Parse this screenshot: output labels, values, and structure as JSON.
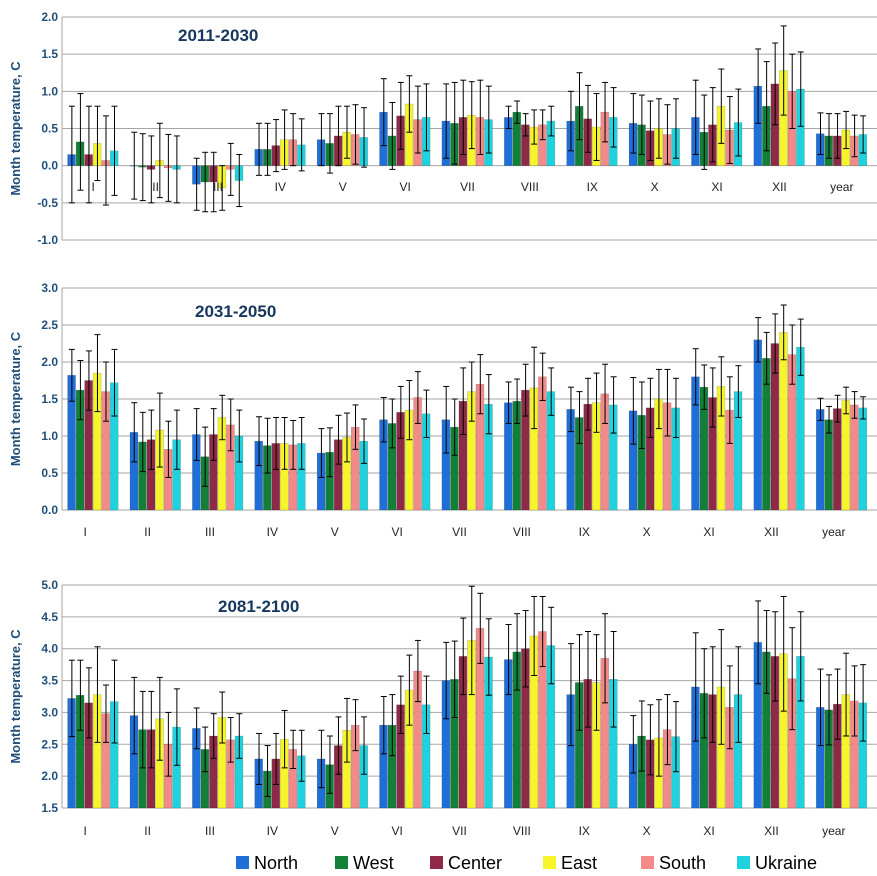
{
  "legend": [
    "North",
    "West",
    "Center",
    "East",
    "South",
    "Ukraine"
  ],
  "colors": [
    "#1f6fd8",
    "#13803a",
    "#8e2a47",
    "#f5f52a",
    "#f28a8a",
    "#1fd3de"
  ],
  "chart_data": [
    {
      "type": "bar",
      "title": "2011-2030",
      "ylabel": "Month temperature, C",
      "ylim": [
        -1.0,
        2.0
      ],
      "yticks": [
        "2.0",
        "1.5",
        "1.0",
        "0.5",
        "0.0",
        "-0.5",
        "-1.0"
      ],
      "categories": [
        "I",
        "II",
        "III",
        "IV",
        "V",
        "VI",
        "VII",
        "VIII",
        "IX",
        "X",
        "XI",
        "XII",
        "year"
      ],
      "grid": true,
      "legend_position": "bottom",
      "series": [
        {
          "name": "North",
          "values": [
            0.15,
            0.0,
            -0.25,
            0.22,
            0.35,
            0.72,
            0.6,
            0.65,
            0.6,
            0.57,
            0.65,
            1.07,
            0.43
          ],
          "err": [
            0.65,
            0.45,
            0.35,
            0.35,
            0.35,
            0.45,
            0.5,
            0.15,
            0.4,
            0.4,
            0.5,
            0.5,
            0.28
          ]
        },
        {
          "name": "West",
          "values": [
            0.32,
            -0.02,
            -0.22,
            0.22,
            0.3,
            0.4,
            0.57,
            0.72,
            0.8,
            0.55,
            0.45,
            0.8,
            0.4
          ],
          "err": [
            0.65,
            0.45,
            0.4,
            0.35,
            0.4,
            0.45,
            0.55,
            0.15,
            0.45,
            0.4,
            0.5,
            0.6,
            0.3
          ]
        },
        {
          "name": "Center",
          "values": [
            0.15,
            -0.05,
            -0.22,
            0.27,
            0.4,
            0.67,
            0.65,
            0.55,
            0.63,
            0.47,
            0.55,
            1.1,
            0.4
          ],
          "err": [
            0.65,
            0.45,
            0.4,
            0.35,
            0.4,
            0.45,
            0.5,
            0.15,
            0.45,
            0.4,
            0.5,
            0.55,
            0.3
          ]
        },
        {
          "name": "East",
          "values": [
            0.3,
            0.07,
            -0.3,
            0.35,
            0.45,
            0.83,
            0.68,
            0.52,
            0.52,
            0.5,
            0.8,
            1.28,
            0.48
          ],
          "err": [
            0.5,
            0.5,
            0.3,
            0.4,
            0.35,
            0.38,
            0.45,
            0.23,
            0.45,
            0.4,
            0.5,
            0.6,
            0.25
          ]
        },
        {
          "name": "South",
          "values": [
            0.07,
            -0.03,
            -0.05,
            0.35,
            0.42,
            0.62,
            0.65,
            0.55,
            0.72,
            0.42,
            0.48,
            1.0,
            0.4
          ],
          "err": [
            0.6,
            0.45,
            0.35,
            0.35,
            0.4,
            0.45,
            0.5,
            0.2,
            0.4,
            0.4,
            0.45,
            0.5,
            0.28
          ]
        },
        {
          "name": "Ukraine",
          "values": [
            0.2,
            -0.05,
            -0.2,
            0.28,
            0.38,
            0.65,
            0.62,
            0.6,
            0.65,
            0.5,
            0.58,
            1.03,
            0.42
          ],
          "err": [
            0.6,
            0.45,
            0.35,
            0.35,
            0.4,
            0.45,
            0.45,
            0.2,
            0.4,
            0.4,
            0.45,
            0.5,
            0.25
          ]
        }
      ]
    },
    {
      "type": "bar",
      "title": "2031-2050",
      "ylabel": "Month temperature, C",
      "ylim": [
        0.0,
        3.0
      ],
      "yticks": [
        "3.0",
        "2.5",
        "2.0",
        "1.5",
        "1.0",
        "0.5",
        "0.0"
      ],
      "categories": [
        "I",
        "II",
        "III",
        "IV",
        "V",
        "VI",
        "VII",
        "VIII",
        "IX",
        "X",
        "XI",
        "XII",
        "year"
      ],
      "grid": true,
      "legend_position": "bottom",
      "series": [
        {
          "name": "North",
          "values": [
            1.82,
            1.05,
            1.02,
            0.93,
            0.77,
            1.22,
            1.22,
            1.45,
            1.36,
            1.34,
            1.8,
            2.3,
            1.36
          ],
          "err": [
            0.35,
            0.4,
            0.35,
            0.33,
            0.33,
            0.3,
            0.45,
            0.28,
            0.3,
            0.45,
            0.38,
            0.3,
            0.15
          ]
        },
        {
          "name": "West",
          "values": [
            1.62,
            0.92,
            0.72,
            0.87,
            0.78,
            1.17,
            1.12,
            1.47,
            1.25,
            1.28,
            1.66,
            2.05,
            1.22
          ],
          "err": [
            0.4,
            0.4,
            0.4,
            0.37,
            0.33,
            0.33,
            0.38,
            0.3,
            0.35,
            0.45,
            0.3,
            0.35,
            0.18
          ]
        },
        {
          "name": "Center",
          "values": [
            1.75,
            0.95,
            1.02,
            0.9,
            0.95,
            1.32,
            1.47,
            1.62,
            1.43,
            1.38,
            1.52,
            2.25,
            1.37
          ],
          "err": [
            0.4,
            0.4,
            0.35,
            0.35,
            0.33,
            0.35,
            0.45,
            0.35,
            0.35,
            0.4,
            0.4,
            0.4,
            0.18
          ]
        },
        {
          "name": "East",
          "values": [
            1.85,
            1.08,
            1.25,
            0.9,
            0.98,
            1.35,
            1.6,
            1.65,
            1.45,
            1.5,
            1.67,
            2.4,
            1.48
          ],
          "err": [
            0.52,
            0.5,
            0.3,
            0.35,
            0.33,
            0.4,
            0.4,
            0.55,
            0.4,
            0.4,
            0.4,
            0.37,
            0.18
          ]
        },
        {
          "name": "South",
          "values": [
            1.6,
            0.82,
            1.15,
            0.88,
            1.12,
            1.52,
            1.7,
            1.8,
            1.57,
            1.45,
            1.35,
            2.1,
            1.42
          ],
          "err": [
            0.4,
            0.38,
            0.35,
            0.33,
            0.3,
            0.35,
            0.4,
            0.32,
            0.4,
            0.45,
            0.45,
            0.4,
            0.18
          ]
        },
        {
          "name": "Ukraine",
          "values": [
            1.72,
            0.95,
            1.0,
            0.9,
            0.93,
            1.3,
            1.43,
            1.6,
            1.42,
            1.38,
            1.6,
            2.2,
            1.38
          ],
          "err": [
            0.45,
            0.4,
            0.35,
            0.35,
            0.3,
            0.32,
            0.4,
            0.32,
            0.38,
            0.4,
            0.35,
            0.38,
            0.15
          ]
        }
      ]
    },
    {
      "type": "bar",
      "title": "2081-2100",
      "ylabel": "Month temperature, C",
      "ylim": [
        1.5,
        5.0
      ],
      "yticks": [
        "5.0",
        "4.5",
        "4.0",
        "3.5",
        "3.0",
        "2.5",
        "2.0",
        "1.5"
      ],
      "categories": [
        "I",
        "II",
        "III",
        "IV",
        "V",
        "VI",
        "VII",
        "VIII",
        "IX",
        "X",
        "XI",
        "XII",
        "year"
      ],
      "grid": true,
      "legend_position": "bottom",
      "series": [
        {
          "name": "North",
          "values": [
            3.22,
            2.95,
            2.75,
            2.27,
            2.27,
            2.8,
            3.5,
            3.83,
            3.28,
            2.5,
            3.4,
            4.1,
            3.08
          ],
          "err": [
            0.6,
            0.6,
            0.32,
            0.4,
            0.45,
            0.45,
            0.6,
            0.55,
            0.8,
            0.45,
            0.85,
            0.65,
            0.6
          ]
        },
        {
          "name": "West",
          "values": [
            3.27,
            2.73,
            2.42,
            2.08,
            2.18,
            2.8,
            3.52,
            3.95,
            3.47,
            2.63,
            3.3,
            3.95,
            3.04
          ],
          "err": [
            0.55,
            0.6,
            0.35,
            0.4,
            0.45,
            0.48,
            0.6,
            0.6,
            0.75,
            0.55,
            0.7,
            0.65,
            0.55
          ]
        },
        {
          "name": "Center",
          "values": [
            3.15,
            2.73,
            2.63,
            2.27,
            2.48,
            3.12,
            3.88,
            4.0,
            3.52,
            2.57,
            3.28,
            3.88,
            3.13
          ],
          "err": [
            0.55,
            0.6,
            0.35,
            0.4,
            0.45,
            0.45,
            0.6,
            0.6,
            0.75,
            0.55,
            0.75,
            0.7,
            0.55
          ]
        },
        {
          "name": "East",
          "values": [
            3.28,
            2.9,
            2.92,
            2.58,
            2.72,
            3.35,
            4.13,
            4.2,
            3.47,
            2.6,
            3.4,
            3.92,
            3.28
          ],
          "err": [
            0.75,
            0.65,
            0.4,
            0.45,
            0.5,
            0.55,
            0.85,
            0.62,
            0.75,
            0.6,
            0.9,
            0.9,
            0.65
          ]
        },
        {
          "name": "South",
          "values": [
            2.98,
            2.5,
            2.57,
            2.42,
            2.8,
            3.65,
            4.32,
            4.27,
            3.85,
            2.73,
            3.08,
            3.53,
            3.18
          ],
          "err": [
            0.45,
            0.5,
            0.35,
            0.3,
            0.4,
            0.48,
            0.55,
            0.55,
            0.7,
            0.55,
            0.65,
            0.8,
            0.55
          ]
        },
        {
          "name": "Ukraine",
          "values": [
            3.17,
            2.77,
            2.63,
            2.32,
            2.48,
            3.12,
            3.87,
            4.05,
            3.52,
            2.62,
            3.28,
            3.88,
            3.15
          ],
          "err": [
            0.65,
            0.6,
            0.35,
            0.4,
            0.45,
            0.45,
            0.6,
            0.6,
            0.75,
            0.55,
            0.75,
            0.7,
            0.6
          ]
        }
      ]
    }
  ]
}
